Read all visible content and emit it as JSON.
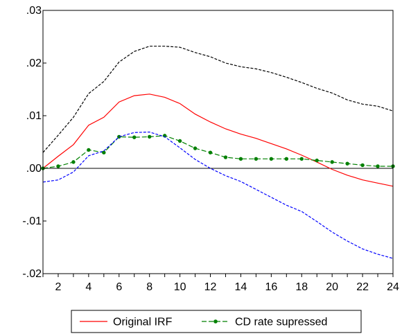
{
  "chart_data": {
    "type": "line",
    "title": "",
    "xlabel": "",
    "ylabel": "",
    "xlim": [
      1,
      24
    ],
    "ylim": [
      -0.02,
      0.03
    ],
    "grid": false,
    "legend_position": "bottom-center",
    "x": [
      1,
      2,
      3,
      4,
      5,
      6,
      7,
      8,
      9,
      10,
      11,
      12,
      13,
      14,
      15,
      16,
      17,
      18,
      19,
      20,
      21,
      22,
      23,
      24
    ],
    "x_tick_labels": [
      {
        "x": 2,
        "label": "2"
      },
      {
        "x": 4,
        "label": "4"
      },
      {
        "x": 6,
        "label": "6"
      },
      {
        "x": 8,
        "label": "8"
      },
      {
        "x": 10,
        "label": "10"
      },
      {
        "x": 12,
        "label": "12"
      },
      {
        "x": 14,
        "label": "14"
      },
      {
        "x": 16,
        "label": "16"
      },
      {
        "x": 18,
        "label": "18"
      },
      {
        "x": 20,
        "label": "20"
      },
      {
        "x": 22,
        "label": "22"
      },
      {
        "x": 24,
        "label": "24"
      }
    ],
    "y_tick_labels": [
      {
        "y": 0.03,
        "label": ".03"
      },
      {
        "y": 0.02,
        "label": ".02"
      },
      {
        "y": 0.01,
        "label": ".01"
      },
      {
        "y": 0.0,
        "label": ".00"
      },
      {
        "y": -0.01,
        "label": "-.01"
      },
      {
        "y": -0.02,
        "label": "-.02"
      }
    ],
    "zero_line": 0.0,
    "series": [
      {
        "name": "Original IRF",
        "color": "#ff0000",
        "style": "solid",
        "marker": "none",
        "in_legend": true,
        "values": [
          0.0,
          0.0023,
          0.0045,
          0.0082,
          0.0097,
          0.0126,
          0.0138,
          0.0141,
          0.0135,
          0.0123,
          0.0103,
          0.0088,
          0.0075,
          0.0065,
          0.0057,
          0.0047,
          0.0037,
          0.0025,
          0.0012,
          -0.0002,
          -0.0013,
          -0.0022,
          -0.0028,
          -0.0034
        ]
      },
      {
        "name": "CD rate supressed",
        "color": "#008000",
        "style": "dashed",
        "marker": "circle",
        "in_legend": true,
        "values": [
          0.0,
          0.0004,
          0.0012,
          0.0035,
          0.003,
          0.006,
          0.0059,
          0.006,
          0.0062,
          0.0052,
          0.0038,
          0.003,
          0.0021,
          0.0018,
          0.0018,
          0.0018,
          0.0018,
          0.0018,
          0.0015,
          0.0012,
          0.0009,
          0.0006,
          0.0004,
          0.0004
        ]
      },
      {
        "name": "",
        "color": "#000000",
        "style": "dashed",
        "marker": "none",
        "in_legend": false,
        "values": [
          0.003,
          0.0063,
          0.0097,
          0.0142,
          0.0165,
          0.0202,
          0.0222,
          0.0232,
          0.0232,
          0.023,
          0.022,
          0.0212,
          0.02,
          0.0193,
          0.0189,
          0.0182,
          0.0173,
          0.0163,
          0.0152,
          0.0143,
          0.013,
          0.0122,
          0.0118,
          0.0109
        ]
      },
      {
        "name": "",
        "color": "#0000ff",
        "style": "dashed",
        "marker": "none",
        "in_legend": false,
        "values": [
          -0.0026,
          -0.0022,
          -0.0007,
          0.0024,
          0.0033,
          0.006,
          0.0068,
          0.0069,
          0.006,
          0.0039,
          0.0017,
          0.0,
          -0.0014,
          -0.0025,
          -0.004,
          -0.0055,
          -0.007,
          -0.0082,
          -0.0101,
          -0.0121,
          -0.0138,
          -0.0153,
          -0.0163,
          -0.0171
        ]
      }
    ]
  }
}
